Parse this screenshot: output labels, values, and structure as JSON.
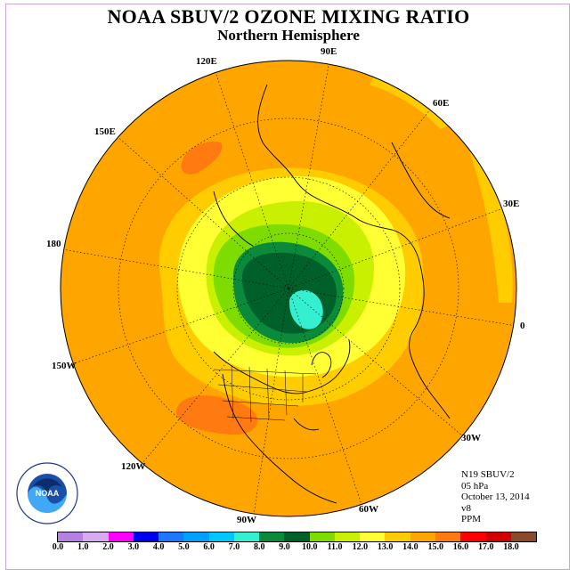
{
  "title": "NOAA SBUV/2 OZONE MIXING RATIO",
  "subtitle": "Northern Hemisphere",
  "longitude_labels": [
    "90E",
    "60E",
    "30E",
    "0",
    "30W",
    "60W",
    "90W",
    "120W",
    "150W",
    "180",
    "150E",
    "120E"
  ],
  "metadata": {
    "instrument": "N19 SBUV/2",
    "pressure": "05 hPa",
    "date": "October 13, 2014",
    "version": "v8",
    "units": "PPM"
  },
  "logo_text": "NOAA",
  "logo_ring_text": "NATIONAL OCEANIC AND ATMOSPHERIC ADMINISTRATION · U.S. DEPARTMENT OF COMMERCE",
  "colorbar": {
    "tick_labels": [
      "0.0",
      "1.0",
      "2.0",
      "3.0",
      "4.0",
      "5.0",
      "6.0",
      "7.0",
      "8.0",
      "9.0",
      "10.0",
      "11.0",
      "12.0",
      "13.0",
      "14.0",
      "15.0",
      "16.0",
      "17.0",
      "18.0"
    ],
    "colors": [
      "#b57fe3",
      "#d8aaf2",
      "#ff00ff",
      "#0000f0",
      "#1e78ff",
      "#00a0ff",
      "#00c8ff",
      "#34f0d0",
      "#0a8a3a",
      "#00602a",
      "#7fdc00",
      "#c8f000",
      "#ffff33",
      "#ffcc00",
      "#ffa500",
      "#ff7a10",
      "#ff0000",
      "#d10000",
      "#8b4a2b"
    ]
  },
  "map_colors": {
    "ocean_base": "#ffa500",
    "orange_light": "#ffcc00",
    "yellow": "#ffff33",
    "yellow_green": "#c8f000",
    "green": "#7fdc00",
    "dark_green": "#0a8a3a",
    "darkest_green": "#00602a",
    "cyan": "#34f0d0",
    "red_orange": "#ff7a10"
  }
}
